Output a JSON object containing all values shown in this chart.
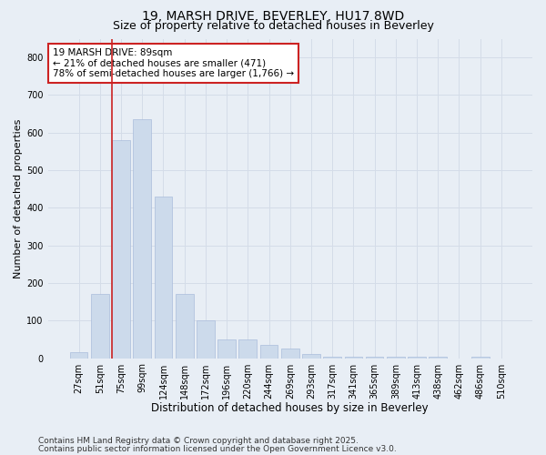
{
  "title1": "19, MARSH DRIVE, BEVERLEY, HU17 8WD",
  "title2": "Size of property relative to detached houses in Beverley",
  "xlabel": "Distribution of detached houses by size in Beverley",
  "ylabel": "Number of detached properties",
  "categories": [
    "27sqm",
    "51sqm",
    "75sqm",
    "99sqm",
    "124sqm",
    "148sqm",
    "172sqm",
    "196sqm",
    "220sqm",
    "244sqm",
    "269sqm",
    "293sqm",
    "317sqm",
    "341sqm",
    "365sqm",
    "389sqm",
    "413sqm",
    "438sqm",
    "462sqm",
    "486sqm",
    "510sqm"
  ],
  "bar_values": [
    15,
    170,
    580,
    635,
    430,
    170,
    100,
    50,
    50,
    35,
    25,
    10,
    5,
    5,
    5,
    5,
    5,
    5,
    0,
    5,
    0
  ],
  "bar_color": "#ccdaeb",
  "bar_edge_color": "#aabddb",
  "grid_color": "#d4dce8",
  "background_color": "#e8eef5",
  "vline_color": "#cc2222",
  "annotation_text": "19 MARSH DRIVE: 89sqm\n← 21% of detached houses are smaller (471)\n78% of semi-detached houses are larger (1,766) →",
  "annotation_box_facecolor": "#ffffff",
  "annotation_box_edgecolor": "#cc2222",
  "ylim": [
    0,
    850
  ],
  "yticks": [
    0,
    100,
    200,
    300,
    400,
    500,
    600,
    700,
    800
  ],
  "footnote1": "Contains HM Land Registry data © Crown copyright and database right 2025.",
  "footnote2": "Contains public sector information licensed under the Open Government Licence v3.0.",
  "title1_fontsize": 10,
  "title2_fontsize": 9,
  "xlabel_fontsize": 8.5,
  "ylabel_fontsize": 8,
  "tick_fontsize": 7,
  "annot_fontsize": 7.5,
  "footnote_fontsize": 6.5,
  "vline_bar_index": 2
}
